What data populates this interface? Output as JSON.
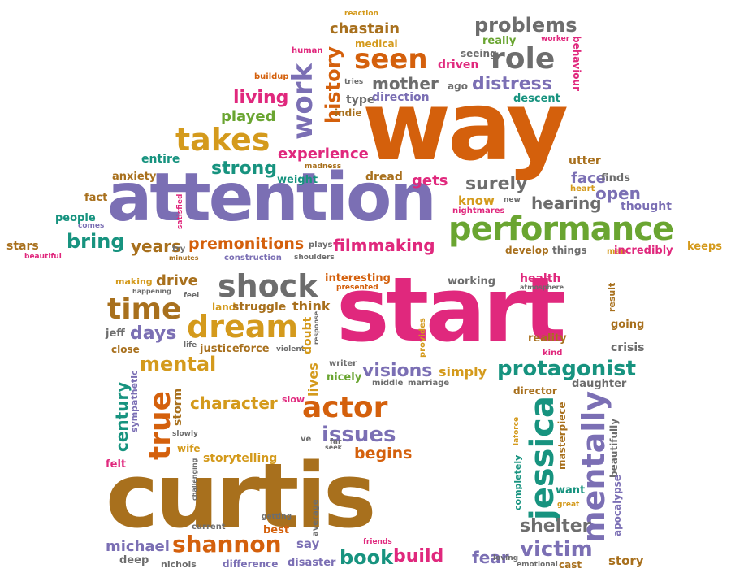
{
  "colors": {
    "orange": "#d4600c",
    "purple": "#7b6fb4",
    "pink": "#e0287d",
    "green": "#6aa531",
    "teal": "#17937f",
    "gold": "#d49a1c",
    "brown": "#a8701d",
    "gray": "#6d6d6d"
  },
  "words": {
    "way": "way",
    "attention": "attention",
    "start": "start",
    "curtis": "curtis",
    "performance": "performance",
    "takes": "takes",
    "seen": "seen",
    "role": "role",
    "problems": "problems",
    "chastain": "chastain",
    "mother": "mother",
    "distress": "distress",
    "living": "living",
    "played": "played",
    "work": "work",
    "history": "history",
    "experience": "experience",
    "strong": "strong",
    "bring": "bring",
    "years": "years",
    "premonitions": "premonitions",
    "filmmaking": "filmmaking",
    "surely": "surely",
    "know": "know",
    "hearing": "hearing",
    "open": "open",
    "gets": "gets",
    "dread": "dread",
    "face": "face",
    "shock": "shock",
    "time": "time",
    "dream": "dream",
    "days": "days",
    "mental": "mental",
    "true": "true",
    "century": "century",
    "character": "character",
    "actor": "actor",
    "issues": "issues",
    "begins": "begins",
    "visions": "visions",
    "protagonist": "protagonist",
    "jessica": "jessica",
    "mentally": "mentally",
    "shannon": "shannon",
    "michael": "michael",
    "book": "book",
    "build": "build",
    "fear": "fear",
    "victim": "victim",
    "shelter": "shelter",
    "story": "story",
    "drive": "drive",
    "making": "making",
    "think": "think",
    "land": "land",
    "struggle": "struggle",
    "interesting": "interesting",
    "simply": "simply",
    "nicely": "nicely",
    "lives": "lives",
    "doubt": "doubt",
    "storm": "storm",
    "health": "health",
    "working": "working",
    "reality": "reality",
    "crisis": "crisis",
    "going": "going",
    "daughter": "daughter",
    "director": "director",
    "masterpiece": "masterpiece",
    "beautifully": "beautifully",
    "apocalypse": "apocalypse",
    "want": "want",
    "stars": "stars",
    "beautiful": "beautiful",
    "keeps": "keeps",
    "incredibly": "incredibly",
    "man": "man",
    "things": "things",
    "develop": "develop",
    "thought": "thought",
    "fact": "fact",
    "people": "people",
    "comes": "comes",
    "anxiety": "anxiety",
    "entire": "entire",
    "weight": "weight",
    "madness": "madness",
    "satisfied": "satisfied",
    "try": "try",
    "minutes": "minutes",
    "plays": "plays",
    "construction": "construction",
    "shoulders": "shoulders",
    "nightmares": "nightmares",
    "new": "new",
    "finds": "finds",
    "heart": "heart",
    "utter": "utter",
    "descent": "descent",
    "behaviour": "behaviour",
    "worker": "worker",
    "really": "really",
    "seeing": "seeing",
    "driven": "driven",
    "ago": "ago",
    "direction": "direction",
    "type": "type",
    "tries": "tries",
    "indie": "indie",
    "human": "human",
    "buildup": "buildup",
    "medical": "medical",
    "reaction": "reaction",
    "jeff": "jeff",
    "close": "close",
    "life": "life",
    "justice": "justice",
    "force": "force",
    "violent": "violent",
    "happening": "happening",
    "feel": "feel",
    "sympathetic": "sympathetic",
    "slowly": "slowly",
    "wife": "wife",
    "felt": "felt",
    "challenging": "challenging",
    "slow": "slow",
    "storytelling": "storytelling",
    "ve": "ve",
    "far": "far",
    "seek": "seek",
    "getting": "getting",
    "best": "best",
    "average": "average",
    "current": "current",
    "say": "say",
    "deep": "deep",
    "nichols": "nichols",
    "difference": "difference",
    "disaster": "disaster",
    "friends": "friends",
    "loving": "loving",
    "emotional": "emotional",
    "cast": "cast",
    "writer": "writer",
    "middle": "middle",
    "marriage": "marriage",
    "provides": "provides",
    "presented": "presented",
    "response": "response",
    "atmosphere": "atmosphere",
    "kind": "kind",
    "result": "result",
    "completely": "completely",
    "laforce": "laforce",
    "great": "great"
  }
}
